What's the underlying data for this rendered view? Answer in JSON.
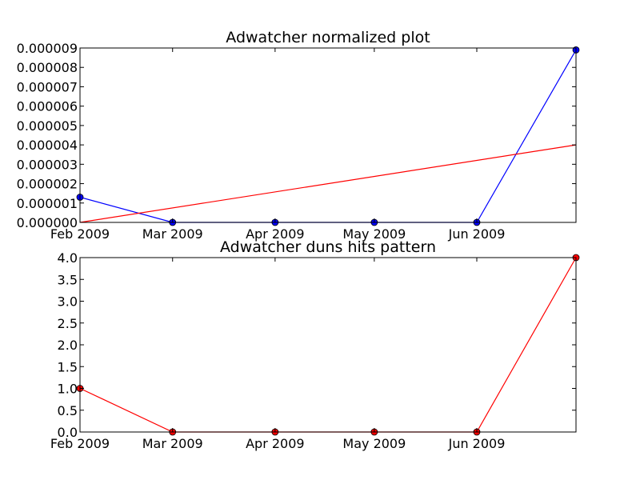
{
  "colors": {
    "blue": "#0000ff",
    "red": "#ff0000",
    "axes": "#000000",
    "marker_edge": "#000000"
  },
  "chart_data": [
    {
      "type": "line",
      "title": "Adwatcher normalized plot",
      "xlabel": "",
      "ylabel": "",
      "xlim": [
        "2009-02-01",
        "2009-07-01"
      ],
      "ylim": [
        0,
        9e-06
      ],
      "grid": false,
      "x_ticks": [
        {
          "date": "2009-02-01",
          "label": "Feb 2009"
        },
        {
          "date": "2009-03-01",
          "label": "Mar 2009"
        },
        {
          "date": "2009-04-01",
          "label": "Apr 2009"
        },
        {
          "date": "2009-05-01",
          "label": "May 2009"
        },
        {
          "date": "2009-06-01",
          "label": "Jun 2009"
        }
      ],
      "y_ticks": [
        {
          "value": 0,
          "label": "0.000000"
        },
        {
          "value": 1e-06,
          "label": "0.000001"
        },
        {
          "value": 2e-06,
          "label": "0.000002"
        },
        {
          "value": 3e-06,
          "label": "0.000003"
        },
        {
          "value": 4e-06,
          "label": "0.000004"
        },
        {
          "value": 5e-06,
          "label": "0.000005"
        },
        {
          "value": 6e-06,
          "label": "0.000006"
        },
        {
          "value": 7e-06,
          "label": "0.000007"
        },
        {
          "value": 8e-06,
          "label": "0.000008"
        },
        {
          "value": 9e-06,
          "label": "0.000009"
        }
      ],
      "series": [
        {
          "color": "#0000ff",
          "markers": true,
          "marker_color": "#0000ff",
          "x": [
            "2009-02-01",
            "2009-03-01",
            "2009-04-01",
            "2009-05-01",
            "2009-06-01",
            "2009-07-01"
          ],
          "y": [
            1.3e-06,
            0,
            0,
            0,
            0,
            8.9e-06
          ]
        },
        {
          "color": "#ff0000",
          "markers": false,
          "x": [
            "2009-02-01",
            "2009-07-01"
          ],
          "y": [
            0,
            4e-06
          ]
        }
      ]
    },
    {
      "type": "line",
      "title": "Adwatcher duns hits pattern",
      "xlabel": "",
      "ylabel": "",
      "xlim": [
        "2009-02-01",
        "2009-07-01"
      ],
      "ylim": [
        0,
        4
      ],
      "grid": false,
      "x_ticks": [
        {
          "date": "2009-02-01",
          "label": "Feb 2009"
        },
        {
          "date": "2009-03-01",
          "label": "Mar 2009"
        },
        {
          "date": "2009-04-01",
          "label": "Apr 2009"
        },
        {
          "date": "2009-05-01",
          "label": "May 2009"
        },
        {
          "date": "2009-06-01",
          "label": "Jun 2009"
        }
      ],
      "y_ticks": [
        {
          "value": 0,
          "label": "0.0"
        },
        {
          "value": 0.5,
          "label": "0.5"
        },
        {
          "value": 1,
          "label": "1.0"
        },
        {
          "value": 1.5,
          "label": "1.5"
        },
        {
          "value": 2,
          "label": "2.0"
        },
        {
          "value": 2.5,
          "label": "2.5"
        },
        {
          "value": 3,
          "label": "3.0"
        },
        {
          "value": 3.5,
          "label": "3.5"
        },
        {
          "value": 4,
          "label": "4.0"
        }
      ],
      "series": [
        {
          "color": "#ff0000",
          "markers": true,
          "marker_color": "#ff0000",
          "x": [
            "2009-02-01",
            "2009-03-01",
            "2009-04-01",
            "2009-05-01",
            "2009-06-01",
            "2009-07-01"
          ],
          "y": [
            1,
            0,
            0,
            0,
            0,
            4
          ]
        }
      ]
    }
  ]
}
